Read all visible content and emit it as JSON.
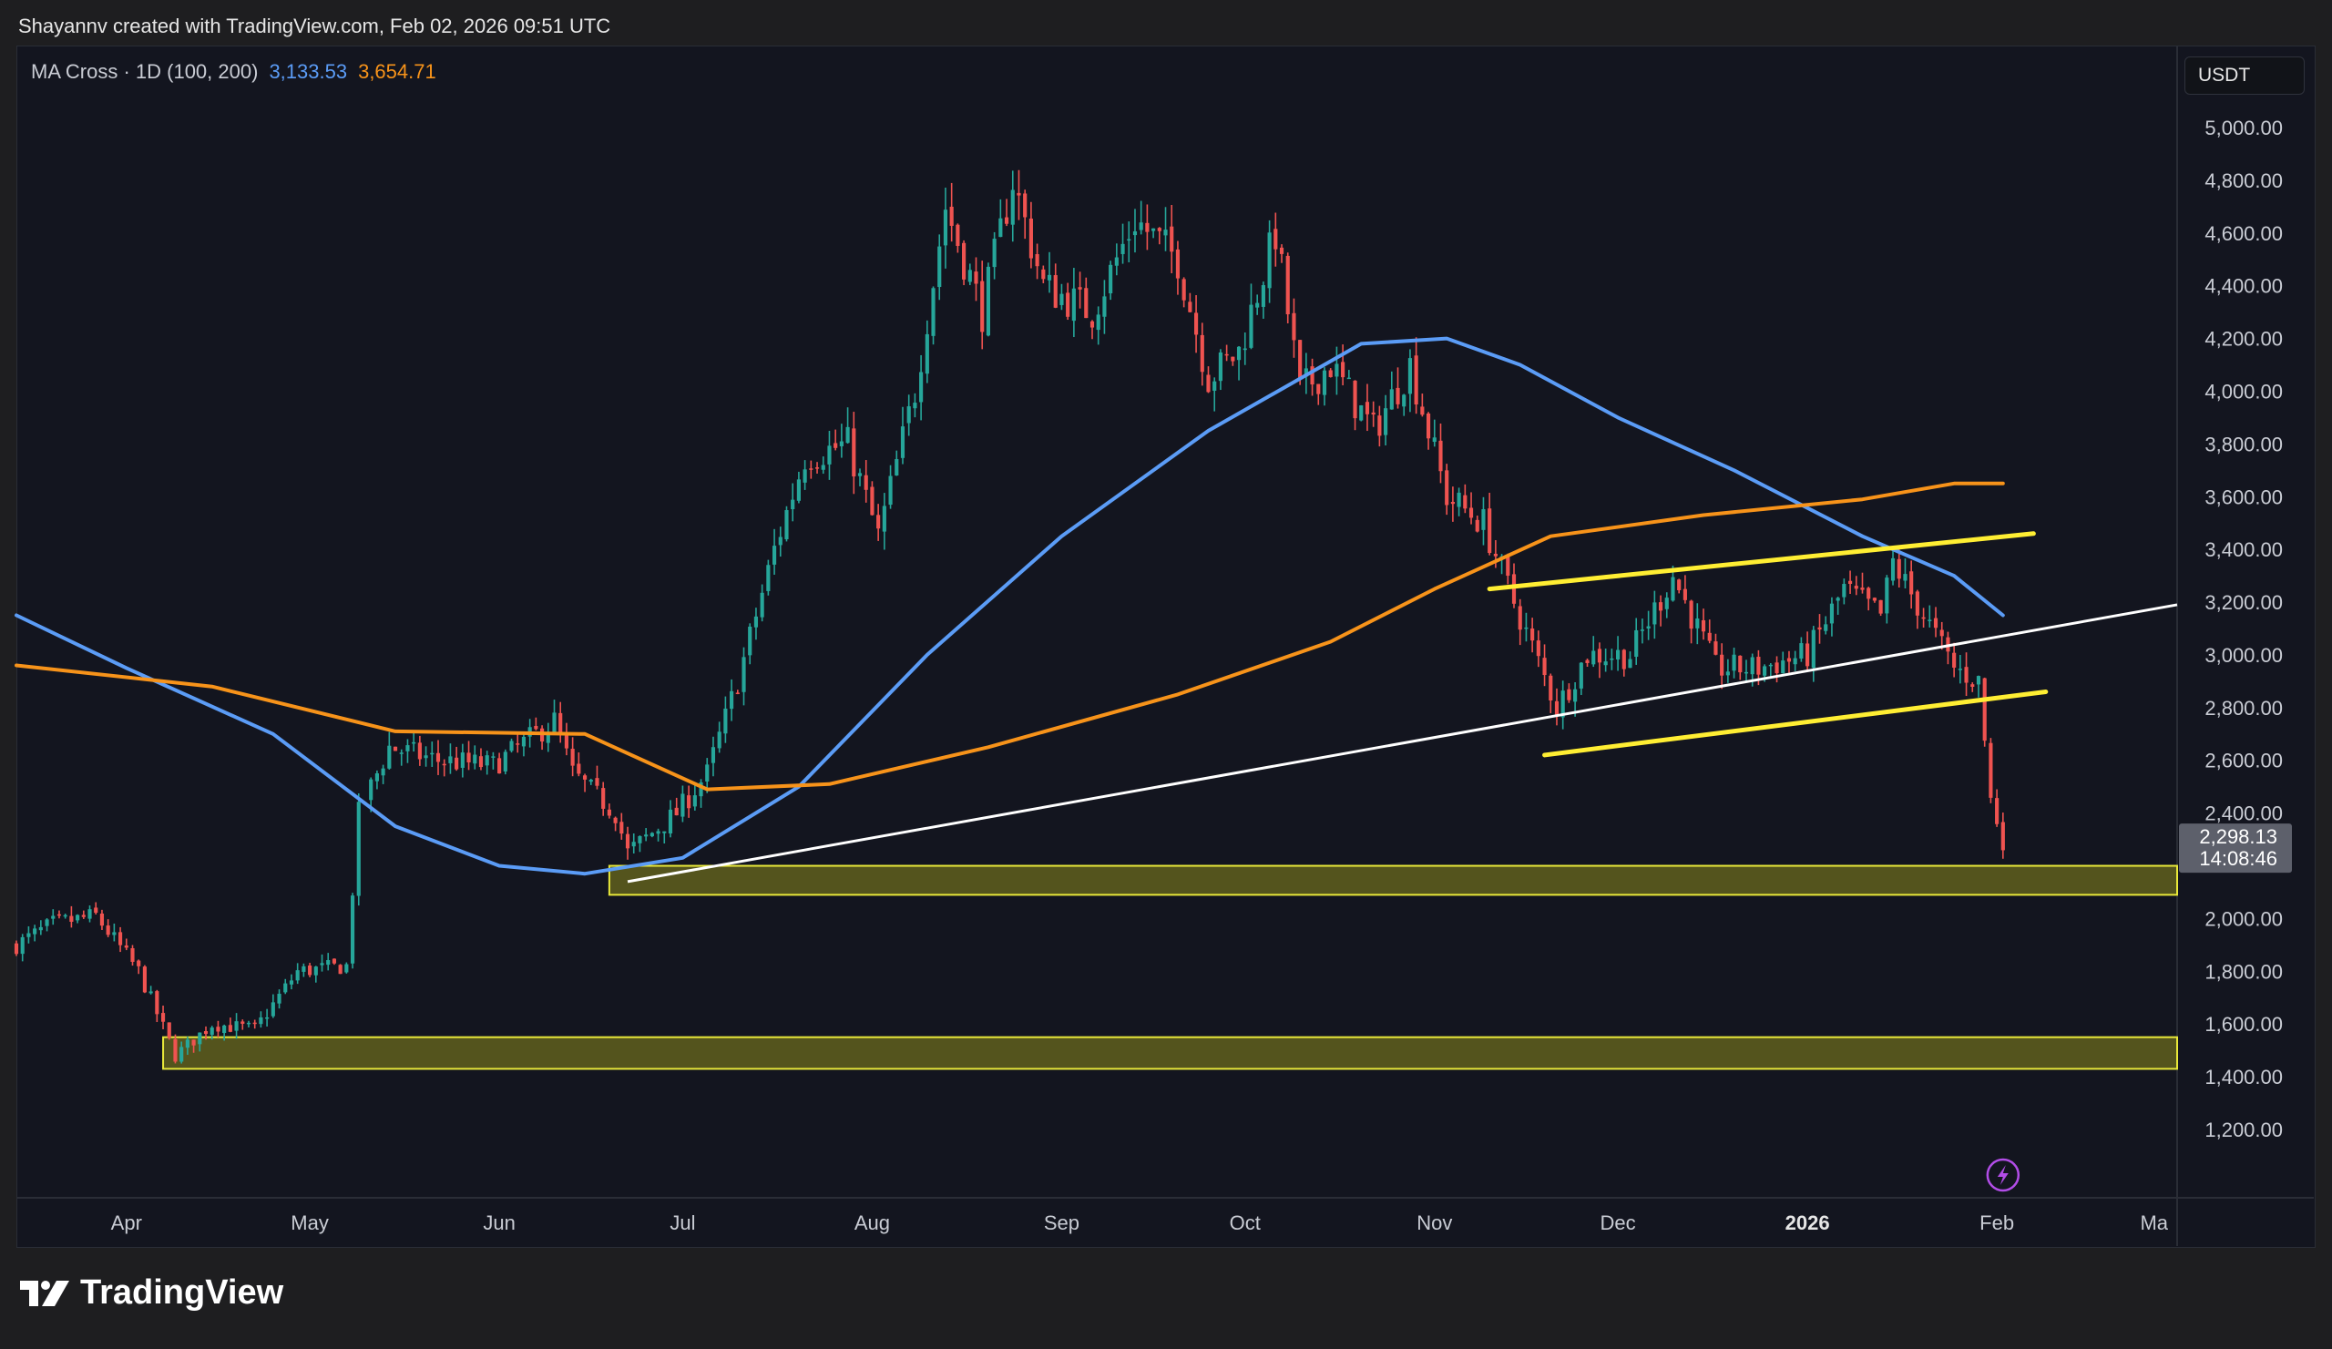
{
  "attribution": "Shayannv created with TradingView.com, Feb 02, 2026 09:51 UTC",
  "indicator": {
    "name": "MA Cross · 1D (100, 200)",
    "ma100_value": "3,133.53",
    "ma200_value": "3,654.71"
  },
  "currency": "USDT",
  "brand": "TradingView",
  "colors": {
    "background": "#13151f",
    "up": "#26a69a",
    "down": "#ef5350",
    "ma100": "#5b9cf6",
    "ma200": "#f7931a",
    "channel": "#ffee33",
    "trendline": "#ffffff",
    "zone": "#6b6a1e"
  },
  "chart_data": {
    "type": "candlestick",
    "title": "",
    "x_ticks": [
      "Apr",
      "May",
      "Jun",
      "Jul",
      "Aug",
      "Sep",
      "Oct",
      "Nov",
      "Dec",
      "2026",
      "Feb",
      "Ma"
    ],
    "y_ticks": [
      "5,000.00",
      "4,800.00",
      "4,600.00",
      "4,400.00",
      "4,200.00",
      "4,000.00",
      "3,800.00",
      "3,600.00",
      "3,400.00",
      "3,200.00",
      "3,000.00",
      "2,800.00",
      "2,600.00",
      "2,400.00",
      "2,000.00",
      "1,800.00",
      "1,600.00",
      "1,400.00",
      "1,200.00"
    ],
    "ylim": [
      1050,
      5200
    ],
    "last_price": {
      "value": "2,298.13",
      "countdown": "14:08:46"
    },
    "price_path": [
      [
        "2025-03-14",
        1900
      ],
      [
        "2025-03-20",
        1980
      ],
      [
        "2025-03-27",
        2010
      ],
      [
        "2025-04-03",
        1800
      ],
      [
        "2025-04-09",
        1480
      ],
      [
        "2025-04-15",
        1600
      ],
      [
        "2025-04-22",
        1580
      ],
      [
        "2025-04-29",
        1800
      ],
      [
        "2025-05-07",
        1820
      ],
      [
        "2025-05-09",
        2400
      ],
      [
        "2025-05-14",
        2650
      ],
      [
        "2025-05-22",
        2600
      ],
      [
        "2025-05-31",
        2580
      ],
      [
        "2025-06-10",
        2750
      ],
      [
        "2025-06-13",
        2550
      ],
      [
        "2025-06-20",
        2400
      ],
      [
        "2025-06-22",
        2250
      ],
      [
        "2025-06-30",
        2400
      ],
      [
        "2025-07-05",
        2550
      ],
      [
        "2025-07-10",
        2900
      ],
      [
        "2025-07-16",
        3400
      ],
      [
        "2025-07-21",
        3750
      ],
      [
        "2025-07-28",
        3800
      ],
      [
        "2025-08-02",
        3450
      ],
      [
        "2025-08-08",
        4000
      ],
      [
        "2025-08-13",
        4700
      ],
      [
        "2025-08-19",
        4300
      ],
      [
        "2025-08-24",
        4800
      ],
      [
        "2025-08-29",
        4400
      ],
      [
        "2025-09-06",
        4300
      ],
      [
        "2025-09-13",
        4650
      ],
      [
        "2025-09-20",
        4500
      ],
      [
        "2025-09-25",
        4050
      ],
      [
        "2025-09-30",
        4150
      ],
      [
        "2025-10-06",
        4600
      ],
      [
        "2025-10-10",
        4000
      ],
      [
        "2025-10-15",
        4100
      ],
      [
        "2025-10-22",
        3850
      ],
      [
        "2025-10-28",
        4100
      ],
      [
        "2025-11-03",
        3600
      ],
      [
        "2025-11-09",
        3500
      ],
      [
        "2025-11-14",
        3200
      ],
      [
        "2025-11-21",
        2800
      ],
      [
        "2025-11-26",
        3000
      ],
      [
        "2025-12-03",
        3000
      ],
      [
        "2025-12-10",
        3300
      ],
      [
        "2025-12-17",
        2950
      ],
      [
        "2025-12-24",
        2950
      ],
      [
        "2026-01-01",
        3000
      ],
      [
        "2026-01-07",
        3250
      ],
      [
        "2026-01-13",
        3150
      ],
      [
        "2026-01-15",
        3350
      ],
      [
        "2026-01-20",
        3150
      ],
      [
        "2026-01-25",
        2950
      ],
      [
        "2026-01-29",
        2900
      ],
      [
        "2026-01-31",
        2450
      ],
      [
        "2026-02-02",
        2300
      ]
    ],
    "series": [
      {
        "name": "MA 100",
        "points": [
          [
            "2025-03-14",
            3150
          ],
          [
            "2025-04-01",
            2950
          ],
          [
            "2025-04-25",
            2700
          ],
          [
            "2025-05-15",
            2350
          ],
          [
            "2025-06-01",
            2200
          ],
          [
            "2025-06-15",
            2170
          ],
          [
            "2025-07-01",
            2230
          ],
          [
            "2025-07-20",
            2500
          ],
          [
            "2025-08-10",
            3000
          ],
          [
            "2025-09-01",
            3450
          ],
          [
            "2025-09-25",
            3850
          ],
          [
            "2025-10-20",
            4180
          ],
          [
            "2025-11-03",
            4200
          ],
          [
            "2025-11-15",
            4100
          ],
          [
            "2025-12-01",
            3900
          ],
          [
            "2025-12-20",
            3700
          ],
          [
            "2026-01-10",
            3450
          ],
          [
            "2026-01-25",
            3300
          ],
          [
            "2026-02-02",
            3150
          ]
        ]
      },
      {
        "name": "MA 200",
        "points": [
          [
            "2025-03-14",
            2960
          ],
          [
            "2025-04-15",
            2880
          ],
          [
            "2025-05-15",
            2710
          ],
          [
            "2025-06-15",
            2700
          ],
          [
            "2025-07-05",
            2490
          ],
          [
            "2025-07-25",
            2510
          ],
          [
            "2025-08-20",
            2650
          ],
          [
            "2025-09-20",
            2850
          ],
          [
            "2025-10-15",
            3050
          ],
          [
            "2025-11-01",
            3250
          ],
          [
            "2025-11-20",
            3450
          ],
          [
            "2025-12-15",
            3530
          ],
          [
            "2026-01-10",
            3590
          ],
          [
            "2026-01-25",
            3650
          ],
          [
            "2026-02-02",
            3650
          ]
        ]
      }
    ],
    "drawings": {
      "trendline": [
        [
          "2025-06-22",
          2140
        ],
        [
          "2026-02-12",
          3190
        ]
      ],
      "channel_upper": [
        [
          "2025-11-10",
          3250
        ],
        [
          "2026-02-07",
          3460
        ]
      ],
      "channel_lower": [
        [
          "2025-11-19",
          2620
        ],
        [
          "2026-02-09",
          2860
        ]
      ],
      "support_zones": [
        {
          "from": "2025-06-19",
          "low": 2090,
          "high": 2200
        },
        {
          "from": "2025-04-07",
          "low": 1430,
          "high": 1550
        }
      ]
    }
  }
}
